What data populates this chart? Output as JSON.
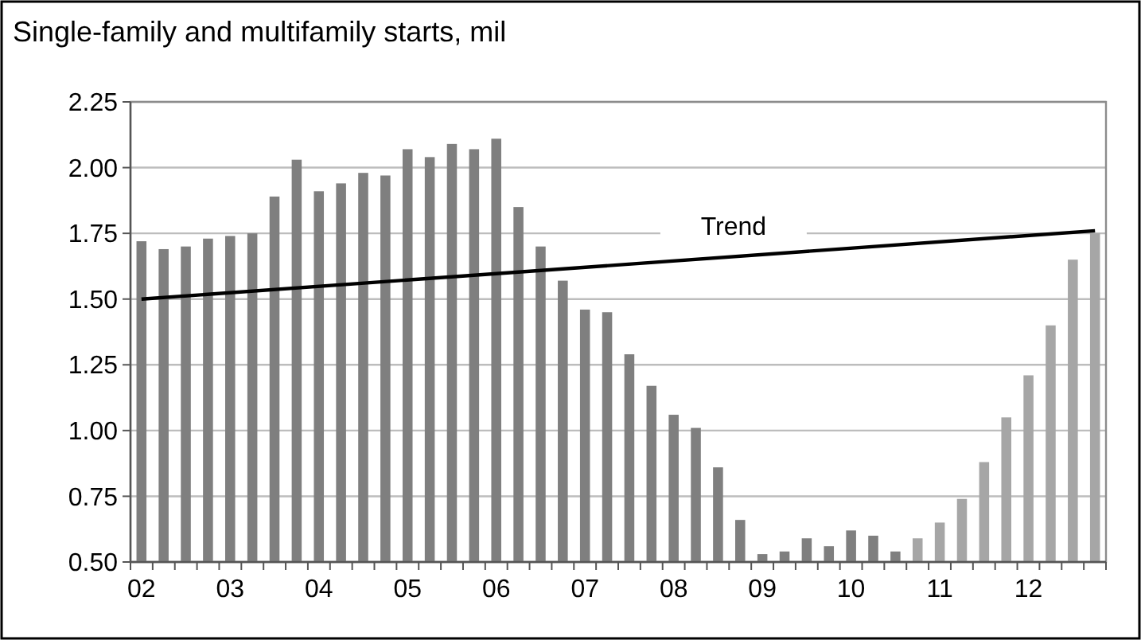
{
  "chart_data": {
    "type": "bar",
    "title": "Single-family and multifamily starts, mil",
    "categories": [
      "02",
      null,
      null,
      null,
      "03",
      null,
      null,
      null,
      "04",
      null,
      null,
      null,
      "05",
      null,
      null,
      null,
      "06",
      null,
      null,
      null,
      "07",
      null,
      null,
      null,
      "08",
      null,
      null,
      null,
      "09",
      null,
      null,
      null,
      "10",
      null,
      null,
      null,
      "11",
      null,
      null,
      null,
      "12",
      null,
      null,
      null
    ],
    "series": [
      {
        "colors": [
          "#7f7f7f",
          "#7f7f7f",
          "#7f7f7f",
          "#7f7f7f",
          "#7f7f7f",
          "#7f7f7f",
          "#7f7f7f",
          "#7f7f7f",
          "#7f7f7f",
          "#7f7f7f",
          "#7f7f7f",
          "#7f7f7f",
          "#7f7f7f",
          "#7f7f7f",
          "#7f7f7f",
          "#7f7f7f",
          "#7f7f7f",
          "#7f7f7f",
          "#7f7f7f",
          "#7f7f7f",
          "#7f7f7f",
          "#7f7f7f",
          "#7f7f7f",
          "#7f7f7f",
          "#7f7f7f",
          "#7f7f7f",
          "#7f7f7f",
          "#7f7f7f",
          "#7f7f7f",
          "#7f7f7f",
          "#7f7f7f",
          "#7f7f7f",
          "#7f7f7f",
          "#7f7f7f",
          "#7f7f7f",
          "#a6a6a6",
          "#a6a6a6",
          "#a6a6a6",
          "#a6a6a6",
          "#a6a6a6",
          "#a6a6a6",
          "#a6a6a6",
          "#a6a6a6",
          "#a6a6a6"
        ],
        "values": [
          1.72,
          1.69,
          1.7,
          1.73,
          1.74,
          1.75,
          1.89,
          2.03,
          1.91,
          1.94,
          1.98,
          1.97,
          2.07,
          2.04,
          2.09,
          2.07,
          2.11,
          1.85,
          1.7,
          1.57,
          1.46,
          1.45,
          1.29,
          1.17,
          1.06,
          1.01,
          0.86,
          0.66,
          0.53,
          0.54,
          0.59,
          0.56,
          0.62,
          0.6,
          0.54,
          0.59,
          0.65,
          0.74,
          0.88,
          1.05,
          1.21,
          1.4,
          1.65,
          1.75
        ]
      },
      {
        "type": "line",
        "color": "#000000",
        "values": [
          1.5,
          null,
          null,
          null,
          null,
          null,
          null,
          null,
          null,
          null,
          null,
          null,
          null,
          null,
          null,
          null,
          null,
          null,
          null,
          null,
          null,
          null,
          null,
          null,
          null,
          null,
          null,
          null,
          null,
          null,
          null,
          null,
          null,
          null,
          null,
          null,
          null,
          null,
          null,
          null,
          null,
          null,
          null,
          1.76
        ]
      }
    ],
    "annotations": [
      {
        "text": "Trend"
      }
    ],
    "ylim": [
      0.5,
      2.25
    ],
    "yticks": [
      {
        "value": 0.5,
        "label": "0.50"
      },
      {
        "value": 0.75,
        "label": "0.75"
      },
      {
        "value": 1,
        "label": "1.00"
      },
      {
        "value": 1.25,
        "label": "1.25"
      },
      {
        "value": 1.5,
        "label": "1.50"
      },
      {
        "value": 1.75,
        "label": "1.75"
      },
      {
        "value": 2,
        "label": "2.00"
      },
      {
        "value": 2.25,
        "label": "2.25"
      }
    ],
    "grid": "y"
  }
}
